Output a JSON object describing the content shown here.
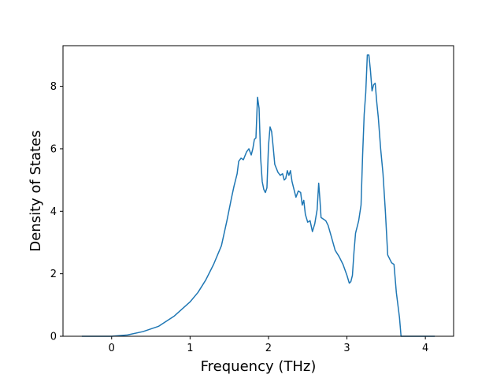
{
  "chart_data": {
    "type": "line",
    "title": "",
    "xlabel": "Frequency (THz)",
    "ylabel": "Density of States",
    "xlim": [
      -0.62,
      4.36
    ],
    "ylim": [
      0,
      9.3
    ],
    "xticks": [
      0,
      1,
      2,
      3,
      4
    ],
    "yticks": [
      0,
      2,
      4,
      6,
      8
    ],
    "grid": false,
    "line_color": "#1f77b4",
    "series": [
      {
        "x": [
          -0.38,
          0.0,
          0.2,
          0.4,
          0.6,
          0.8,
          1.0,
          1.1,
          1.2,
          1.3,
          1.4,
          1.47,
          1.53,
          1.56,
          1.58,
          1.6,
          1.62,
          1.65,
          1.68,
          1.72,
          1.75,
          1.78,
          1.8,
          1.82,
          1.84,
          1.86,
          1.88,
          1.9,
          1.92,
          1.94,
          1.96,
          1.98,
          2.0,
          2.02,
          2.04,
          2.06,
          2.08,
          2.12,
          2.15,
          2.18,
          2.2,
          2.22,
          2.24,
          2.26,
          2.28,
          2.3,
          2.32,
          2.35,
          2.38,
          2.41,
          2.43,
          2.45,
          2.47,
          2.5,
          2.53,
          2.56,
          2.59,
          2.62,
          2.64,
          2.655,
          2.67,
          2.7,
          2.73,
          2.76,
          2.8,
          2.85,
          2.9,
          2.95,
          3.0,
          3.03,
          3.05,
          3.07,
          3.09,
          3.11,
          3.13,
          3.15,
          3.18,
          3.2,
          3.22,
          3.24,
          3.26,
          3.28,
          3.3,
          3.32,
          3.34,
          3.36,
          3.38,
          3.4,
          3.43,
          3.46,
          3.49,
          3.52,
          3.55,
          3.57,
          3.6,
          3.63,
          3.67,
          3.69,
          3.72,
          3.75,
          3.78,
          4.12
        ],
        "y": [
          0.0,
          0.0,
          0.04,
          0.15,
          0.32,
          0.65,
          1.1,
          1.4,
          1.8,
          2.3,
          2.9,
          3.7,
          4.45,
          4.8,
          5.0,
          5.2,
          5.6,
          5.7,
          5.65,
          5.9,
          6.0,
          5.8,
          6.0,
          6.3,
          6.35,
          7.65,
          7.3,
          5.7,
          4.95,
          4.7,
          4.6,
          4.75,
          6.1,
          6.7,
          6.55,
          6.05,
          5.5,
          5.25,
          5.15,
          5.2,
          5.0,
          5.05,
          5.3,
          5.15,
          5.3,
          4.95,
          4.75,
          4.45,
          4.65,
          4.6,
          4.2,
          4.35,
          3.9,
          3.65,
          3.7,
          3.35,
          3.6,
          4.05,
          4.9,
          4.4,
          3.8,
          3.75,
          3.7,
          3.55,
          3.2,
          2.75,
          2.55,
          2.3,
          1.95,
          1.7,
          1.75,
          1.95,
          2.7,
          3.3,
          3.5,
          3.7,
          4.2,
          5.8,
          7.1,
          7.8,
          9.0,
          9.0,
          8.5,
          7.85,
          8.05,
          8.1,
          7.5,
          7.0,
          6.0,
          5.2,
          4.0,
          2.6,
          2.45,
          2.35,
          2.3,
          1.4,
          0.6,
          0.0,
          0.0,
          0.0,
          0.0,
          0.0
        ]
      }
    ]
  }
}
